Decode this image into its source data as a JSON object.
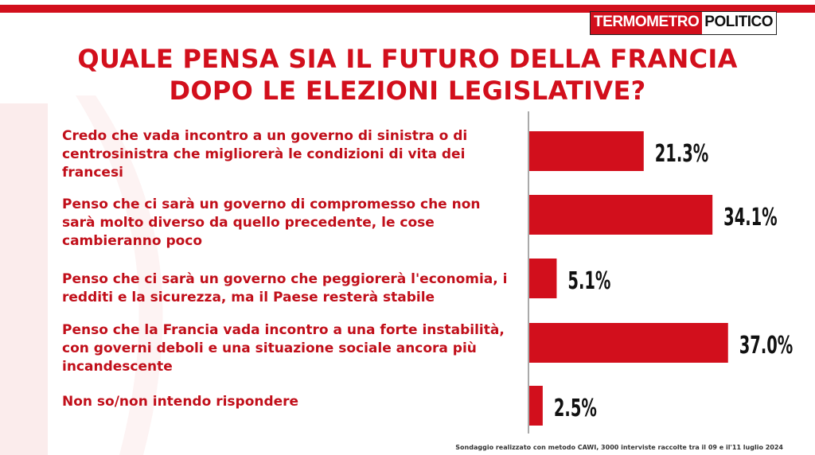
{
  "header": {
    "logo_part1": "TERMOMETRO",
    "logo_part2": "POLITICO",
    "title_line1": "QUALE PENSA SIA IL FUTURO DELLA FRANCIA",
    "title_line2": "DOPO LE ELEZIONI LEGISLATIVE?"
  },
  "answers": [
    {
      "lines": [
        "Credo che vada incontro a un governo di sinistra o di",
        "centrosinistra che migliorerà  le condizioni di vita dei",
        "francesi"
      ]
    },
    {
      "lines": [
        "Penso che ci sarà un governo di compromesso che non",
        "sarà molto diverso da quello precedente, le cose",
        "cambieranno poco"
      ]
    },
    {
      "lines": [
        "Penso che ci sarà un governo che peggiorerà l'economia, i",
        "redditi e la sicurezza, ma il Paese resterà stabile"
      ]
    },
    {
      "lines": [
        "Penso che la Francia vada incontro a una forte instabilità,",
        "con governi deboli e una situazione sociale ancora più",
        "incandescente"
      ]
    },
    {
      "lines": [
        "Non so/non intendo rispondere"
      ]
    }
  ],
  "chart_data": {
    "type": "bar",
    "orientation": "horizontal",
    "values": [
      21.3,
      34.1,
      5.1,
      37.0,
      2.5
    ],
    "value_labels": [
      "21.3%",
      "34.1%",
      "5.1%",
      "37.0%",
      "2.5%"
    ],
    "bar_color": "#d20f1c",
    "grid": false
  },
  "footer": {
    "note": "Sondaggio realizzato con metodo CAWI, 3000 interviste raccolte tra il 09 e il'11 luglio 2024"
  },
  "colors": {
    "accent": "#d20f1c",
    "answer_text": "#c10f1a"
  }
}
